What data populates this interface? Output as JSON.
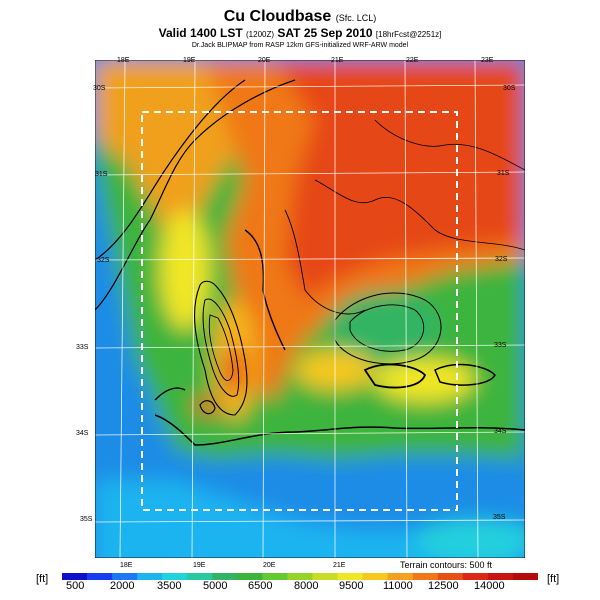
{
  "title": {
    "main": "Cu Cloudbase",
    "main_small": "(Sfc. LCL)",
    "valid": "Valid 1400 LST",
    "valid_small1": "(1200Z)",
    "valid_date": "SAT 25 Sep 2010",
    "valid_small2": "[18hrFcst@2251z]",
    "credit": "Dr.Jack BLIPMAP from RASP 12km GFS-initialized WRF-ARW model"
  },
  "lon_top": [
    "18E",
    "19E",
    "20E",
    "21E",
    "22E",
    "23E"
  ],
  "lon_bottom": [
    "18E",
    "19E",
    "20E",
    "21E"
  ],
  "lat_left": [
    "30S",
    "31S",
    "32S",
    "33S",
    "34S",
    "35S"
  ],
  "lat_right": [
    "30S",
    "31S",
    "32S",
    "33S",
    "34S",
    "35S"
  ],
  "terrain_note": "Terrain contours: 500 ft",
  "unit": "[ft]",
  "colorbar_labels": [
    "500",
    "2000",
    "3500",
    "5000",
    "6500",
    "8000",
    "9500",
    "11000",
    "12500",
    "14000"
  ],
  "colors": {
    "scale": [
      "#1010c8",
      "#1a3cf0",
      "#1e78f5",
      "#1eb4f0",
      "#20d2dc",
      "#28c8a0",
      "#32b464",
      "#3cb43c",
      "#64c832",
      "#96d228",
      "#c8dc28",
      "#f0e628",
      "#f5c81e",
      "#f5a01e",
      "#f07818",
      "#e65014",
      "#dc2814",
      "#c81414",
      "#b40a0a"
    ],
    "water": "#1e6ee6",
    "high": "#e63c14"
  }
}
